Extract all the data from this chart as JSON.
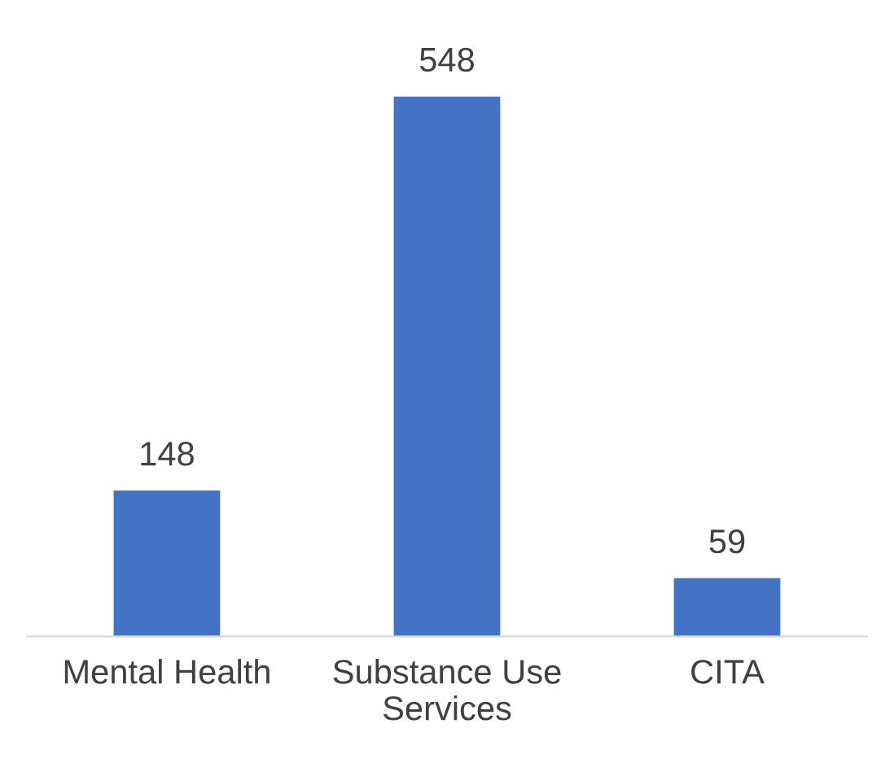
{
  "chart_data": {
    "type": "bar",
    "categories": [
      "Mental Health",
      "Substance Use\nServices",
      "CITA"
    ],
    "values": [
      148,
      548,
      59
    ],
    "color": "#4472c4",
    "data_labels": true,
    "grid": false,
    "legend": false
  }
}
